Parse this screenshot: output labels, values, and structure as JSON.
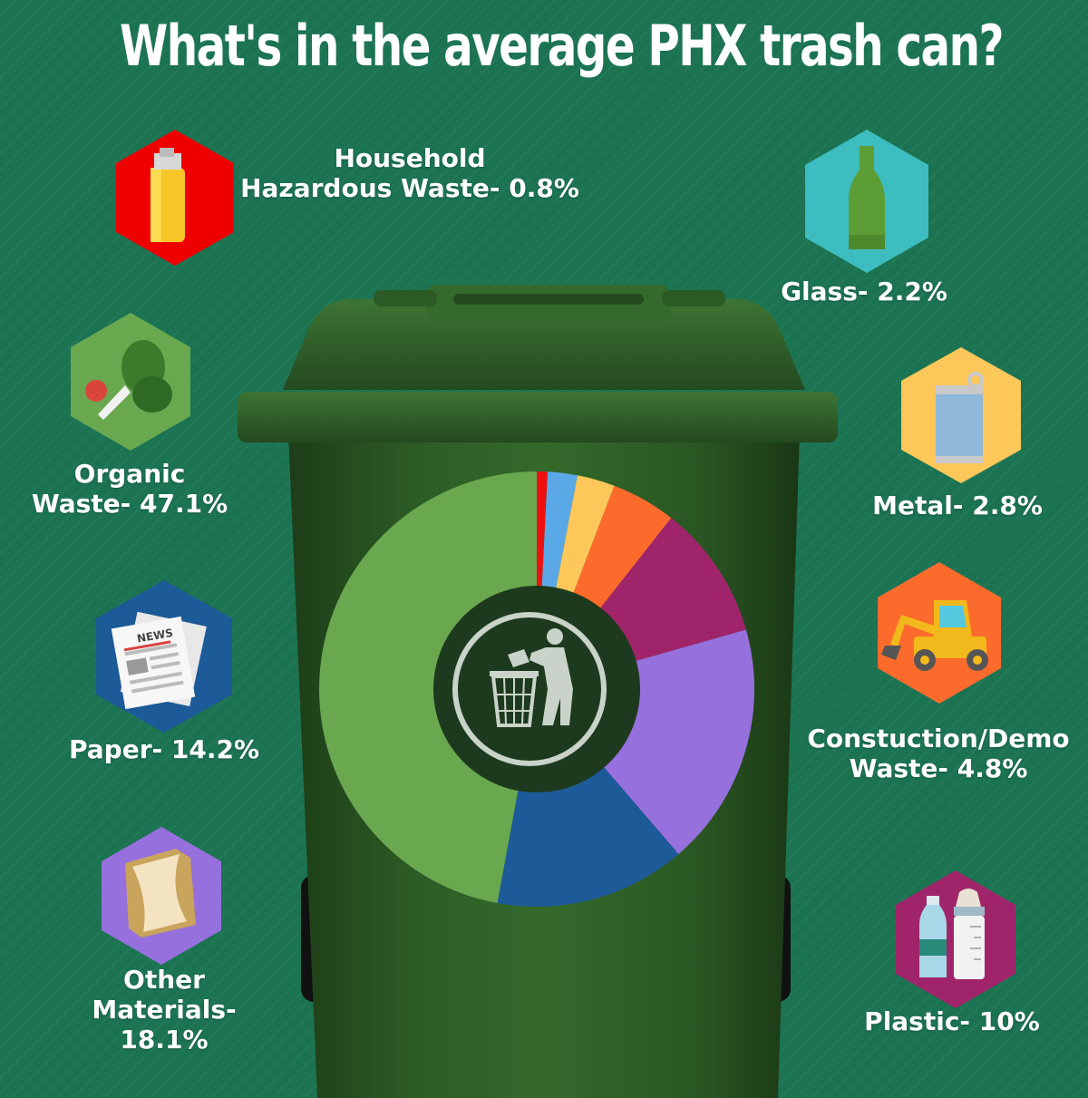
{
  "title": "What's in the average PHX trash can?",
  "colors": {
    "background": "#1b7352",
    "bin": "#2b5a24",
    "bin_dark": "#1f3f1a"
  },
  "labels": {
    "hazardous": {
      "line1": "Household",
      "line2": "Hazardous Waste- 0.8%"
    },
    "glass": {
      "line1": "Glass- 2.2%"
    },
    "organic": {
      "line1": "Organic",
      "line2": "Waste- 47.1%"
    },
    "metal": {
      "line1": "Metal- 2.8%"
    },
    "paper": {
      "line1": "Paper- 14.2%"
    },
    "construction": {
      "line1": "Constuction/Demo",
      "line2": "Waste- 4.8%"
    },
    "other": {
      "line1": "Other",
      "line2": "Materials-",
      "line3": "18.1%"
    },
    "plastic": {
      "line1": "Plastic- 10%"
    }
  },
  "icons": {
    "hazardous": {
      "name": "lighter-icon",
      "color": "#ee0000"
    },
    "glass": {
      "name": "bottle-icon",
      "color": "#3dbdbf"
    },
    "organic": {
      "name": "vegetables-icon",
      "color": "#69a84f"
    },
    "metal": {
      "name": "can-icon",
      "color": "#fdc75a"
    },
    "paper": {
      "name": "newspaper-icon",
      "color": "#1d5a98"
    },
    "construction": {
      "name": "excavator-icon",
      "color": "#fd6b2c"
    },
    "other": {
      "name": "package-icon",
      "color": "#9670dc"
    },
    "plastic": {
      "name": "plastic-bottles-icon",
      "color": "#a0246a"
    },
    "newspaper_text": "NEWS"
  },
  "chart_data": {
    "type": "pie",
    "title": "What's in the average PHX trash can?",
    "series": [
      {
        "name": "Household Hazardous Waste",
        "value": 0.8,
        "color": "#ee1111"
      },
      {
        "name": "Glass",
        "value": 2.2,
        "color": "#5aa9e6"
      },
      {
        "name": "Metal",
        "value": 2.8,
        "color": "#fdc75a"
      },
      {
        "name": "Constuction/Demo Waste",
        "value": 4.8,
        "color": "#fd6b2c"
      },
      {
        "name": "Plastic",
        "value": 10,
        "color": "#a0246a"
      },
      {
        "name": "Other Materials",
        "value": 18.1,
        "color": "#9670dc"
      },
      {
        "name": "Paper",
        "value": 14.2,
        "color": "#1d5a98"
      },
      {
        "name": "Organic Waste",
        "value": 47.1,
        "color": "#69a84f"
      }
    ],
    "center_icon": "litter-bin-icon",
    "start": "top",
    "direction": "clockwise"
  }
}
